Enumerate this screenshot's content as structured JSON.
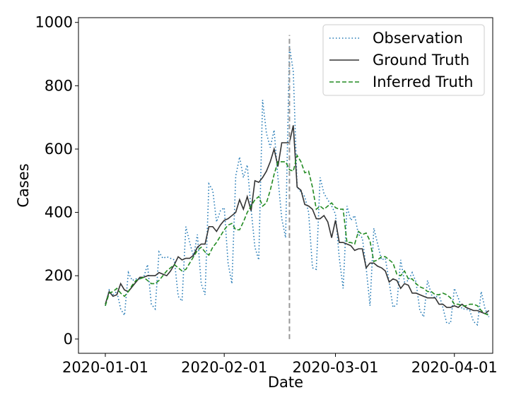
{
  "chart_data": {
    "type": "line",
    "xlabel": "Date",
    "ylabel": "Cases",
    "xlim": [
      "2019-12-25",
      "2020-04-11"
    ],
    "ylim": [
      -45,
      1015
    ],
    "xticks": [
      {
        "date": "2020-01-01",
        "label": "2020-01-01"
      },
      {
        "date": "2020-02-01",
        "label": "2020-02-01"
      },
      {
        "date": "2020-03-01",
        "label": "2020-03-01"
      },
      {
        "date": "2020-04-01",
        "label": "2020-04-01"
      }
    ],
    "yticks": [
      0,
      200,
      400,
      600,
      800,
      1000
    ],
    "grid": false,
    "legend_position": "top-right",
    "vline": {
      "date": "2020-02-18",
      "y_range": [
        0,
        960
      ],
      "color": "#999999",
      "style": "dashed"
    },
    "start_date": "2020-01-01",
    "series": [
      {
        "name": "Observation",
        "color": "#1f77b4",
        "style": "dotted",
        "values": [
          105,
          155,
          140,
          150,
          95,
          75,
          210,
          185,
          190,
          190,
          195,
          235,
          110,
          95,
          275,
          255,
          260,
          255,
          250,
          135,
          120,
          355,
          305,
          260,
          330,
          175,
          140,
          490,
          470,
          370,
          405,
          415,
          240,
          175,
          515,
          575,
          510,
          550,
          410,
          290,
          250,
          755,
          650,
          605,
          660,
          510,
          380,
          320,
          925,
          845,
          480,
          465,
          450,
          400,
          225,
          220,
          510,
          460,
          440,
          420,
          395,
          255,
          160,
          420,
          375,
          390,
          330,
          320,
          225,
          105,
          350,
          300,
          250,
          255,
          180,
          100,
          110,
          250,
          180,
          185,
          210,
          180,
          90,
          70,
          185,
          140,
          130,
          140,
          100,
          50,
          50,
          160,
          130,
          95,
          95,
          90,
          55,
          45,
          150,
          95,
          70
        ]
      },
      {
        "name": "Ground Truth",
        "color": "#333333",
        "style": "solid",
        "values": [
          110,
          150,
          135,
          140,
          175,
          155,
          150,
          165,
          180,
          195,
          195,
          200,
          200,
          200,
          210,
          205,
          200,
          215,
          235,
          260,
          250,
          255,
          255,
          265,
          290,
          300,
          300,
          355,
          355,
          340,
          360,
          375,
          380,
          390,
          400,
          440,
          410,
          450,
          405,
          500,
          495,
          510,
          530,
          560,
          600,
          545,
          620,
          620,
          620,
          675,
          480,
          470,
          425,
          420,
          410,
          380,
          380,
          390,
          370,
          320,
          375,
          305,
          305,
          300,
          295,
          280,
          285,
          285,
          225,
          240,
          240,
          230,
          225,
          215,
          180,
          190,
          185,
          160,
          175,
          170,
          145,
          145,
          140,
          135,
          130,
          130,
          130,
          110,
          110,
          100,
          100,
          105,
          100,
          110,
          100,
          95,
          90,
          90,
          85,
          80,
          90
        ]
      },
      {
        "name": "Inferred Truth",
        "color": "#228b22",
        "style": "dashed",
        "values": [
          105,
          145,
          150,
          160,
          145,
          135,
          150,
          170,
          185,
          190,
          195,
          185,
          175,
          175,
          185,
          200,
          215,
          225,
          235,
          225,
          215,
          220,
          240,
          260,
          280,
          290,
          275,
          265,
          290,
          305,
          325,
          345,
          360,
          365,
          345,
          345,
          370,
          400,
          420,
          440,
          450,
          420,
          430,
          470,
          520,
          560,
          560,
          560,
          535,
          530,
          580,
          560,
          525,
          530,
          480,
          410,
          420,
          410,
          420,
          430,
          415,
          410,
          410,
          305,
          305,
          300,
          340,
          330,
          335,
          310,
          245,
          250,
          260,
          260,
          250,
          240,
          205,
          200,
          215,
          190,
          190,
          175,
          165,
          160,
          150,
          150,
          140,
          140,
          145,
          140,
          130,
          110,
          110,
          105,
          105,
          110,
          110,
          105,
          90,
          80,
          75
        ]
      }
    ]
  }
}
